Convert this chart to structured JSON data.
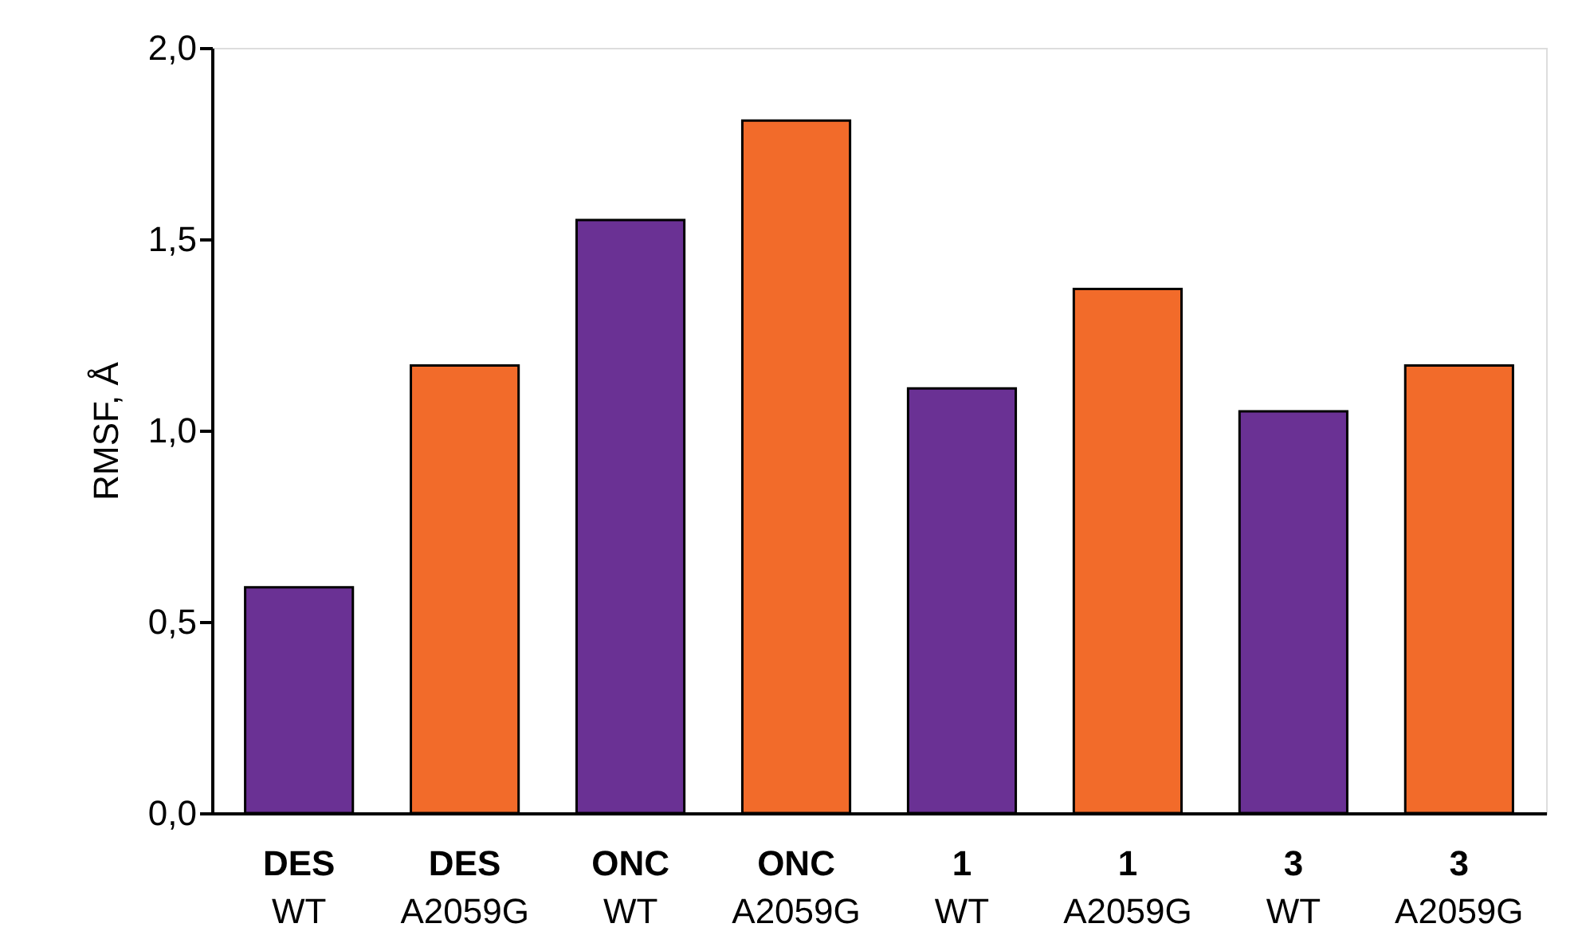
{
  "chart_data": {
    "type": "bar",
    "ylabel": "RMSF, Å",
    "categories": [
      "DES\nWT",
      "DES\nA2059G",
      "ONC\nWT",
      "ONC\nA2059G",
      "1\nWT",
      "1\nA2059G",
      "3\nWT",
      "3\nA2059G"
    ],
    "values": [
      0.59,
      1.17,
      1.55,
      1.81,
      1.11,
      1.37,
      1.05,
      1.17
    ],
    "colors": [
      "#6a3194",
      "#f26b2a",
      "#6a3194",
      "#f26b2a",
      "#6a3194",
      "#f26b2a",
      "#6a3194",
      "#f26b2a"
    ],
    "ylim": [
      0,
      2
    ],
    "yticks": [
      {
        "value": 0,
        "label": "0,0"
      },
      {
        "value": 0.5,
        "label": "0,5"
      },
      {
        "value": 1,
        "label": "1,0"
      },
      {
        "value": 1.5,
        "label": "1,5"
      },
      {
        "value": 2,
        "label": "2,0"
      }
    ],
    "grid": false
  }
}
